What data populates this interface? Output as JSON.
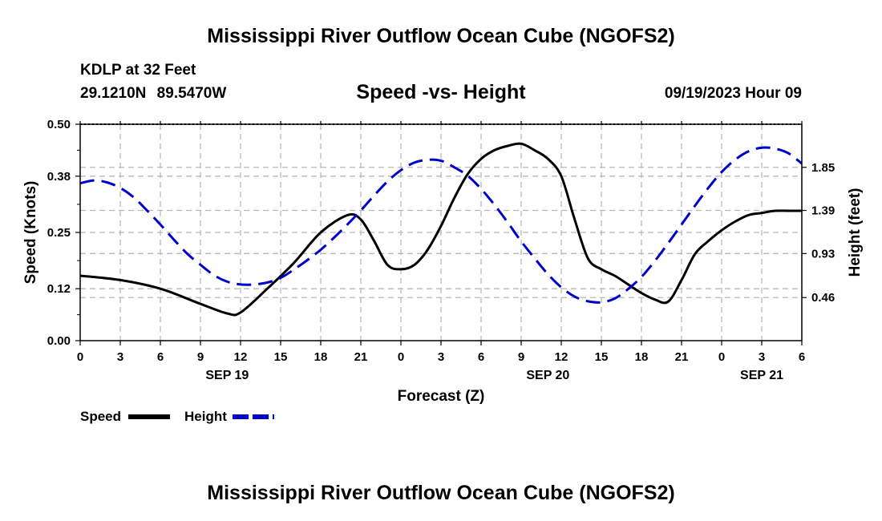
{
  "header": {
    "title": "Mississippi River Outflow Ocean Cube (NGOFS2)",
    "station": "KDLP at 32 Feet",
    "coords": "29.1210N 89.5470W",
    "subtitle": "Speed -vs- Height",
    "datetime": "09/19/2023 Hour 09"
  },
  "footer": {
    "title": "Mississippi River Outflow Ocean Cube (NGOFS2)"
  },
  "legend": {
    "speed_label": "Speed",
    "height_label": "Height",
    "speed_color": "#000000",
    "height_color": "#0000cc"
  },
  "chart_data": {
    "type": "line",
    "title": "Speed -vs- Height",
    "xlabel": "Forecast (Z)",
    "ylabel_left": "Speed (Knots)",
    "ylabel_right": "Height (feet)",
    "x_hours_range": [
      0,
      54
    ],
    "x_tick_labels": [
      "0",
      "3",
      "6",
      "9",
      "12",
      "15",
      "18",
      "21",
      "0",
      "3",
      "6",
      "9",
      "12",
      "15",
      "18",
      "21",
      "0",
      "3",
      "6"
    ],
    "day_labels": [
      {
        "hour": 11,
        "label": "SEP 19"
      },
      {
        "hour": 35,
        "label": "SEP 20"
      },
      {
        "hour": 51,
        "label": "SEP 21"
      }
    ],
    "y_left": {
      "range": [
        0,
        0.5
      ],
      "ticks": [
        "0.00",
        "0.12",
        "0.25",
        "0.38",
        "0.50"
      ]
    },
    "y_right": {
      "range": [
        0.0,
        2.31
      ],
      "ticks": [
        "0.46",
        "0.93",
        "1.39",
        "1.85"
      ]
    },
    "grid": true,
    "series": [
      {
        "name": "Speed",
        "axis": "left",
        "style": "solid",
        "color": "#000000",
        "x": [
          0,
          3,
          6,
          9,
          11,
          12,
          14,
          16,
          18,
          20,
          21,
          22,
          23,
          24,
          25,
          26,
          27,
          28,
          29,
          30,
          31,
          32,
          33,
          34,
          35,
          36,
          37,
          38,
          39,
          40,
          41,
          42,
          43,
          44,
          45,
          46,
          47,
          48,
          49,
          50,
          51,
          52,
          53,
          54
        ],
        "y": [
          0.15,
          0.14,
          0.12,
          0.085,
          0.063,
          0.065,
          0.12,
          0.18,
          0.25,
          0.29,
          0.28,
          0.23,
          0.175,
          0.165,
          0.175,
          0.21,
          0.265,
          0.33,
          0.385,
          0.42,
          0.44,
          0.45,
          0.455,
          0.44,
          0.42,
          0.38,
          0.28,
          0.19,
          0.165,
          0.15,
          0.13,
          0.11,
          0.095,
          0.09,
          0.14,
          0.2,
          0.23,
          0.255,
          0.275,
          0.29,
          0.295,
          0.3,
          0.3,
          0.3
        ]
      },
      {
        "name": "Height",
        "axis": "right",
        "style": "dashed",
        "color": "#0000cc",
        "x": [
          0,
          1,
          2,
          3,
          4,
          5,
          6,
          7,
          8,
          9,
          10,
          11,
          12,
          13,
          14,
          15,
          16,
          17,
          18,
          19,
          20,
          21,
          22,
          23,
          24,
          25,
          26,
          27,
          28,
          29,
          30,
          31,
          32,
          33,
          34,
          35,
          36,
          37,
          38,
          39,
          40,
          41,
          42,
          43,
          44,
          45,
          46,
          47,
          48,
          49,
          50,
          51,
          52,
          53,
          54
        ],
        "y": [
          1.68,
          1.71,
          1.69,
          1.63,
          1.53,
          1.39,
          1.24,
          1.08,
          0.93,
          0.81,
          0.7,
          0.63,
          0.6,
          0.6,
          0.62,
          0.67,
          0.76,
          0.86,
          0.97,
          1.1,
          1.24,
          1.39,
          1.55,
          1.7,
          1.82,
          1.9,
          1.93,
          1.92,
          1.85,
          1.76,
          1.62,
          1.45,
          1.26,
          1.06,
          0.88,
          0.71,
          0.57,
          0.47,
          0.42,
          0.41,
          0.45,
          0.55,
          0.68,
          0.85,
          1.04,
          1.24,
          1.44,
          1.63,
          1.8,
          1.93,
          2.02,
          2.06,
          2.05,
          2.0,
          1.89
        ]
      }
    ]
  }
}
